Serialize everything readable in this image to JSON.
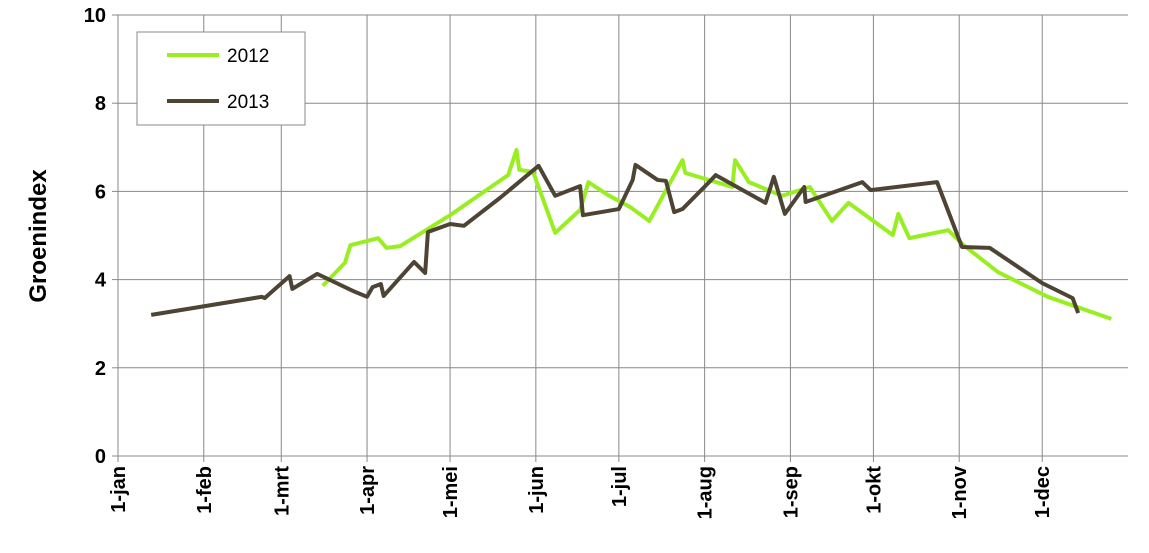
{
  "chart_data": {
    "type": "line",
    "y_label": "Groenindex",
    "xlim": [
      0,
      365
    ],
    "xticks": [
      {
        "value": 0,
        "label": "1-jan"
      },
      {
        "value": 31,
        "label": "1-feb"
      },
      {
        "value": 59,
        "label": "1-mrt"
      },
      {
        "value": 90,
        "label": "1-apr"
      },
      {
        "value": 120,
        "label": "1-mei"
      },
      {
        "value": 151,
        "label": "1-jun"
      },
      {
        "value": 181,
        "label": "1-jul"
      },
      {
        "value": 212,
        "label": "1-aug"
      },
      {
        "value": 243,
        "label": "1-sep"
      },
      {
        "value": 273,
        "label": "1-okt"
      },
      {
        "value": 304,
        "label": "1-nov"
      },
      {
        "value": 334,
        "label": "1-dec"
      }
    ],
    "ylim": [
      0,
      10
    ],
    "yticks": [
      0,
      2,
      4,
      6,
      8,
      10
    ],
    "grid": true,
    "legend": "upper left",
    "series": [
      {
        "name": "2012",
        "color": "#99ee22",
        "x": [
          74,
          82,
          84,
          94,
          97,
          102,
          120,
          141,
          144,
          145,
          150,
          158,
          167,
          170,
          177,
          185,
          192,
          204,
          205,
          222,
          223,
          228,
          240,
          250,
          258,
          264,
          280,
          282,
          286,
          300,
          306,
          318,
          336,
          359
        ],
        "values": [
          3.86,
          4.38,
          4.78,
          4.94,
          4.72,
          4.76,
          5.46,
          6.37,
          6.94,
          6.49,
          6.44,
          5.06,
          5.58,
          6.21,
          5.92,
          5.65,
          5.33,
          6.71,
          6.42,
          6.1,
          6.71,
          6.21,
          5.9,
          6.1,
          5.33,
          5.74,
          5.01,
          5.49,
          4.94,
          5.12,
          4.76,
          4.17,
          3.61,
          3.11
        ]
      },
      {
        "name": "2013",
        "color": "#4d4433",
        "x": [
          12,
          52,
          53,
          62,
          63,
          72,
          85,
          90,
          92,
          95,
          96,
          107,
          111,
          112,
          120,
          125,
          138,
          152,
          158,
          167,
          168,
          181,
          186,
          187,
          195,
          198,
          201,
          204,
          213,
          216,
          234,
          237,
          241,
          248,
          248.5,
          269,
          272,
          296,
          305,
          315,
          334,
          345,
          347
        ],
        "values": [
          3.2,
          3.61,
          3.58,
          4.08,
          3.79,
          4.13,
          3.74,
          3.61,
          3.83,
          3.9,
          3.63,
          4.4,
          4.15,
          5.08,
          5.26,
          5.22,
          5.85,
          6.58,
          5.9,
          6.12,
          5.46,
          5.6,
          6.26,
          6.6,
          6.26,
          6.24,
          5.53,
          5.6,
          6.17,
          6.37,
          5.74,
          6.33,
          5.49,
          6.1,
          5.76,
          6.21,
          6.03,
          6.21,
          4.74,
          4.72,
          3.92,
          3.58,
          3.24
        ]
      }
    ]
  }
}
